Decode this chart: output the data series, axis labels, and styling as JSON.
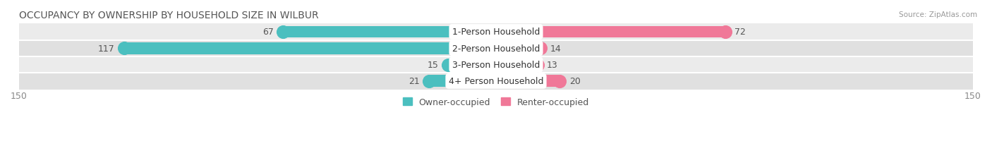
{
  "title": "OCCUPANCY BY OWNERSHIP BY HOUSEHOLD SIZE IN WILBUR",
  "source": "Source: ZipAtlas.com",
  "categories": [
    "1-Person Household",
    "2-Person Household",
    "3-Person Household",
    "4+ Person Household"
  ],
  "owner_values": [
    67,
    117,
    15,
    21
  ],
  "renter_values": [
    72,
    14,
    13,
    20
  ],
  "owner_color": "#4BBFBF",
  "renter_color": "#F07898",
  "row_bg_colors": [
    "#EBEBEB",
    "#E0E0E0",
    "#EBEBEB",
    "#E0E0E0"
  ],
  "xlim": 150,
  "bar_height": 0.72,
  "label_fontsize": 9,
  "title_fontsize": 10,
  "value_fontsize": 9,
  "axis_label_fontsize": 9,
  "legend_fontsize": 9,
  "figsize": [
    14.06,
    2.32
  ],
  "dpi": 100
}
